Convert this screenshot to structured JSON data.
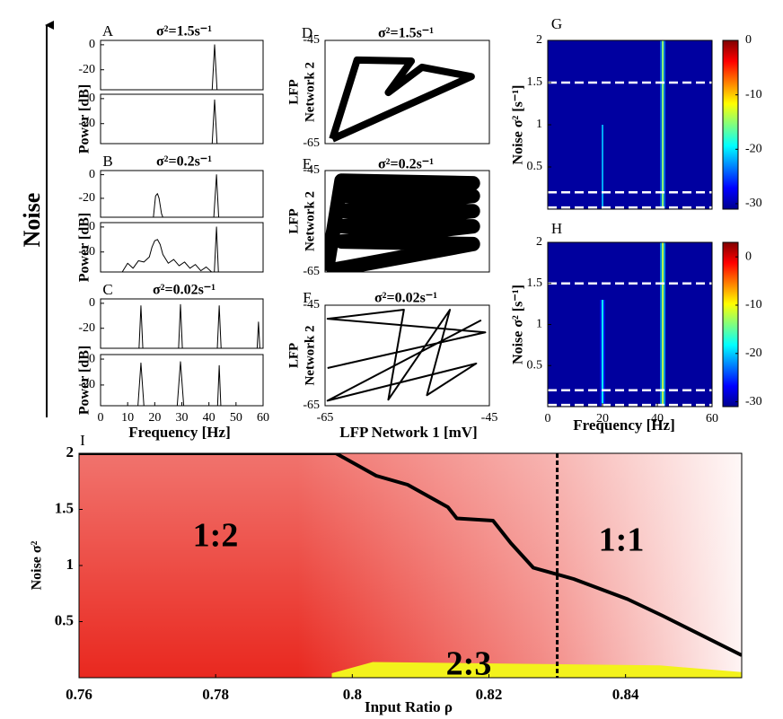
{
  "noise_label": "Noise",
  "chart_data": [
    {
      "type": "line",
      "label": "A",
      "title": "σ²=1.5s⁻¹",
      "xlim": [
        0,
        60
      ],
      "ylim": [
        -36,
        3.5
      ],
      "yticks": [
        0,
        -20
      ],
      "x": [
        0,
        41.2,
        42.1,
        43,
        60
      ],
      "values": [
        -36,
        -36,
        0,
        -36,
        -36
      ]
    },
    {
      "type": "line",
      "ylabel": "Power [dB]",
      "xlim": [
        0,
        60
      ],
      "ylim": [
        -36,
        3.5
      ],
      "yticks": [
        0,
        -20
      ],
      "x": [
        0,
        41.2,
        42.1,
        43,
        60
      ],
      "values": [
        -36,
        -36,
        -1,
        -36,
        -36
      ]
    },
    {
      "type": "line",
      "label": "B",
      "title": "σ²=0.2s⁻¹",
      "xlim": [
        0,
        60
      ],
      "ylim": [
        -36,
        3.5
      ],
      "yticks": [
        0,
        -20
      ],
      "x": [
        0,
        19.5,
        20.3,
        21,
        21.6,
        22.5,
        23,
        41.8,
        42.8,
        43.6,
        60
      ],
      "values": [
        -36,
        -36,
        -18,
        -16,
        -20,
        -33,
        -36,
        -36,
        0,
        -36,
        -36
      ]
    },
    {
      "type": "line",
      "ylabel": "Power [dB]",
      "xlim": [
        0,
        60
      ],
      "ylim": [
        -36,
        3.5
      ],
      "yticks": [
        0,
        -20
      ],
      "x": [
        0,
        8,
        10,
        12,
        14,
        16,
        18,
        19,
        20,
        21,
        22,
        23,
        25,
        27,
        29,
        31,
        33,
        35,
        37,
        39,
        41,
        42,
        42.8,
        43.5,
        60
      ],
      "values": [
        -36,
        -36,
        -29,
        -33,
        -27,
        -28,
        -24,
        -16,
        -11,
        -10,
        -14,
        -22,
        -29,
        -26,
        -31,
        -28,
        -33,
        -30,
        -35,
        -32,
        -36,
        -36,
        0,
        -36,
        -36
      ]
    },
    {
      "type": "line",
      "label": "C",
      "title": "σ²=0.02s⁻¹",
      "xlim": [
        0,
        60
      ],
      "ylim": [
        -36,
        3.5
      ],
      "yticks": [
        0,
        -20
      ],
      "x": [
        0,
        14.2,
        14.9,
        15.6,
        28.8,
        29.5,
        30.2,
        43.1,
        43.8,
        44.5,
        57.8,
        58.3,
        58.8,
        60
      ],
      "values": [
        -36,
        -36,
        -2,
        -36,
        -36,
        -1,
        -36,
        -36,
        -2,
        -36,
        -36,
        -15,
        -36,
        -36
      ]
    },
    {
      "type": "line",
      "ylabel": "Power [dB]",
      "xlabel": "Frequency [Hz]",
      "xlim": [
        0,
        60
      ],
      "ylim": [
        -36,
        3.5
      ],
      "yticks": [
        0,
        -20
      ],
      "xticks": [
        0,
        10,
        20,
        30,
        40,
        50,
        60
      ],
      "x": [
        0,
        13.8,
        14.9,
        16,
        28.3,
        29.5,
        30.7,
        43.2,
        43.8,
        44.4,
        60
      ],
      "values": [
        -36,
        -36,
        -3,
        -36,
        -36,
        -2,
        -36,
        -36,
        -5,
        -36,
        -36
      ]
    },
    {
      "type": "phase",
      "label": "D",
      "title": "σ²=1.5s⁻¹",
      "ylabel": [
        "LFP",
        "Network 2"
      ],
      "xlim": [
        -65,
        -45
      ],
      "ylim": [
        -65,
        -45
      ],
      "yticks": [
        -45,
        -65
      ],
      "x": [
        -64.1,
        -61.1,
        -54.5,
        -57.3,
        -53.2,
        -47.2,
        -64.1
      ],
      "values": [
        -64.1,
        -48.8,
        -49,
        -55.1,
        -50.2,
        -52,
        -64.1
      ]
    },
    {
      "type": "phase",
      "label": "E",
      "title": "σ²=0.2s⁻¹",
      "ylabel": [
        "LFP",
        "Network 2"
      ],
      "xlim": [
        -65,
        -45
      ],
      "ylim": [
        -65,
        -45
      ],
      "yticks": [
        -45,
        -65
      ],
      "x": [
        -64.8,
        -63,
        -47,
        -63,
        -47,
        -63,
        -47,
        -63,
        -47,
        -63,
        -47,
        -64.8
      ],
      "values": [
        -64.8,
        -47,
        -47.5,
        -50,
        -50,
        -53,
        -53,
        -56,
        -56,
        -59,
        -59.5,
        -64.8
      ]
    },
    {
      "type": "phase",
      "label": "F",
      "title": "σ²=0.02s⁻¹",
      "ylabel": [
        "LFP",
        "Network 2"
      ],
      "xlabel": "LFP Network 1 [mV]",
      "xlim": [
        -65,
        -45
      ],
      "ylim": [
        -65,
        -45
      ],
      "yticks": [
        -45,
        -65
      ],
      "xticks": [
        -65,
        -45
      ],
      "x": [
        -64.7,
        -45.5,
        -64.7,
        -55.4,
        -57.3,
        -49.8,
        -52.6,
        -46.6,
        -64.7,
        -46
      ],
      "values": [
        -57.5,
        -50.4,
        -47.7,
        -45.9,
        -63.8,
        -45.9,
        -62.9,
        -56.6,
        -64,
        -48
      ]
    },
    {
      "type": "heatmap",
      "label": "G",
      "ylabel": "Noise σ² [s⁻¹]",
      "xlim": [
        0,
        60
      ],
      "ylim": [
        0,
        2
      ],
      "yticks": [
        0.5,
        1,
        1.5,
        2
      ],
      "clim": [
        -31,
        0
      ],
      "cticks": [
        0,
        -10,
        -20,
        -30
      ],
      "background": -30,
      "ridges": [
        {
          "x": 42,
          "y": [
            0,
            2
          ],
          "value": -15
        },
        {
          "x": 20,
          "y": [
            0,
            1
          ],
          "value": -22
        }
      ],
      "hlines": [
        1.5,
        0.2,
        0.02
      ]
    },
    {
      "type": "heatmap",
      "label": "H",
      "ylabel": "Noise σ² [s⁻¹]",
      "xlabel": "Frequency [Hz]",
      "xlim": [
        0,
        60
      ],
      "ylim": [
        0,
        2
      ],
      "yticks": [
        0.5,
        1,
        1.5,
        2
      ],
      "xticks": [
        0,
        20,
        40,
        60
      ],
      "clim": [
        -31,
        3
      ],
      "cticks": [
        0,
        -10,
        -20,
        -30
      ],
      "background": -30,
      "ridges": [
        {
          "x": 42,
          "y": [
            0,
            2
          ],
          "value": -12
        },
        {
          "x": 20,
          "y": [
            0,
            1.3
          ],
          "value": -18
        }
      ],
      "hlines": [
        1.5,
        0.2,
        0.02
      ]
    },
    {
      "type": "region",
      "label": "I",
      "xlabel": "Input Ratio ρ",
      "ylabel": "Noise σ²",
      "xlim": [
        0.76,
        0.857
      ],
      "ylim": [
        0,
        2
      ],
      "xticks": [
        0.76,
        0.78,
        0.8,
        0.82,
        0.84
      ],
      "yticks": [
        0.5,
        1,
        1.5,
        2
      ],
      "lines": [
        {
          "color": "#000000",
          "x": [
            0.76,
            0.7976,
            0.8035,
            0.8081,
            0.814,
            0.8153,
            0.8206,
            0.8232,
            0.8265,
            0.8324,
            0.8403,
            0.8455,
            0.857
          ],
          "values": [
            2,
            2,
            1.8,
            1.72,
            1.52,
            1.42,
            1.4,
            1.2,
            0.98,
            0.88,
            0.7,
            0.55,
            0.2
          ]
        }
      ],
      "vlines": [
        0.83
      ],
      "areas": [
        {
          "color": "#f3f21c",
          "x": [
            0.797,
            0.803,
            0.845,
            0.857
          ],
          "values": [
            0.04,
            0.14,
            0.11,
            0.05
          ]
        }
      ],
      "annotations": [
        "1:2",
        "1:1",
        "2:3"
      ]
    }
  ]
}
